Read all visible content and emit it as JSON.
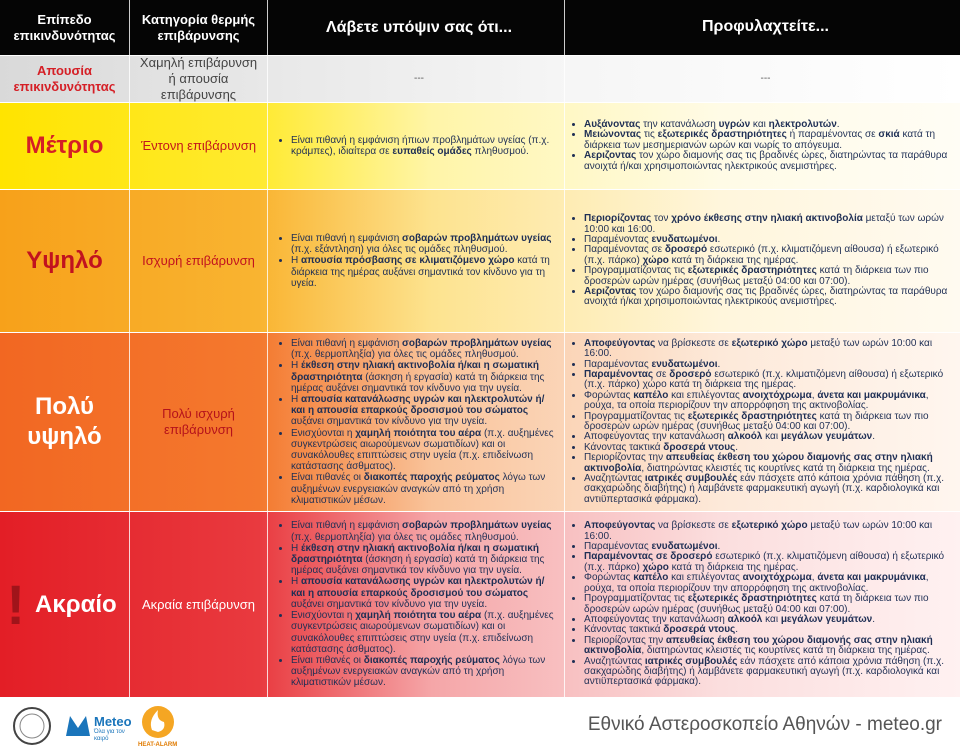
{
  "header": {
    "level": "Επίπεδο επικινδυνότητας",
    "category": "Κατηγορία θερμής επιβάρυνσης",
    "consider": "Λάβετε υπόψιν σας ότι...",
    "protect": "Προφυλαχτείτε..."
  },
  "rows": [
    {
      "level": "Απουσία επικινδυνότητας",
      "category": "Χαμηλή επιβάρυνση ή απουσία επιβάρυνσης",
      "consider": "---",
      "protect": "---"
    },
    {
      "level": "Μέτριο",
      "category": "Έντονη επιβάρυνση",
      "consider": [
        [
          {
            "t": "Είναι πιθανή η εμφάνιση ήπιων προβλημάτων υγείας (π.χ. κράμπες), ιδιαίτερα σε "
          },
          {
            "t": "ευπαθείς ομάδες",
            "b": true
          },
          {
            "t": " πληθυσμού."
          }
        ]
      ],
      "protect": [
        [
          {
            "t": "Αυξάνοντας",
            "b": true
          },
          {
            "t": " την κατανάλωση "
          },
          {
            "t": "υγρών",
            "b": true
          },
          {
            "t": " και "
          },
          {
            "t": "ηλεκτρολυτών",
            "b": true
          },
          {
            "t": "."
          }
        ],
        [
          {
            "t": "Μειώνοντας",
            "b": true
          },
          {
            "t": " τις "
          },
          {
            "t": "εξωτερικές δραστηριότητες",
            "b": true
          },
          {
            "t": " ή παραμένοντας σε "
          },
          {
            "t": "σκιά",
            "b": true
          },
          {
            "t": " κατά τη διάρκεια των μεσημεριανών ωρών και νωρίς το απόγευμα."
          }
        ],
        [
          {
            "t": "Αεριζοντας",
            "b": true
          },
          {
            "t": " τον χώρο διαμονής σας τις βραδινές ώρες, διατηρώντας τα παράθυρα ανοιχτά ή/και χρησιμοποιώντας ηλεκτρικούς ανεμιστήρες."
          }
        ]
      ]
    },
    {
      "level": "Υψηλό",
      "category": "Ισχυρή επιβάρυνση",
      "consider": [
        [
          {
            "t": "Είναι πιθανή η εμφάνιση "
          },
          {
            "t": "σοβαρών προβλημάτων υγείας",
            "b": true
          },
          {
            "t": " (π.χ. εξάντληση) για όλες τις ομάδες πληθυσμού."
          }
        ],
        [
          {
            "t": "Η "
          },
          {
            "t": "απουσία πρόσβασης σε κλιματιζόμενο χώρο",
            "b": true
          },
          {
            "t": " κατά τη διάρκεια της ημέρας αυξάνει σημαντικά τον κίνδυνο για τη υγεία."
          }
        ]
      ],
      "protect": [
        [
          {
            "t": "Περιορίζοντας",
            "b": true
          },
          {
            "t": " τον "
          },
          {
            "t": "χρόνο έκθεσης στην ηλιακή ακτινοβολία",
            "b": true
          },
          {
            "t": " μεταξύ των ωρών 10:00 και 16:00."
          }
        ],
        [
          {
            "t": "Παραμένοντας "
          },
          {
            "t": "ενυδατωμένοι",
            "b": true
          },
          {
            "t": "."
          }
        ],
        [
          {
            "t": "Παραμένοντας σε "
          },
          {
            "t": "δροσερό",
            "b": true
          },
          {
            "t": " εσωτερικό (π.χ. κλιματιζόμενη αίθουσα) ή εξωτερικό (π.χ. πάρκο) "
          },
          {
            "t": "χώρο",
            "b": true
          },
          {
            "t": " κατά τη διάρκεια της ημέρας."
          }
        ],
        [
          {
            "t": "Προγραμματίζοντας τις "
          },
          {
            "t": "εξωτερικές δραστηριότητες",
            "b": true
          },
          {
            "t": " κατά τη διάρκεια των πιο δροσερών ωρών ημέρας (συνήθως μεταξύ 04:00 και 07:00)."
          }
        ],
        [
          {
            "t": "Αεριζοντας",
            "b": true
          },
          {
            "t": " τον χώρο διαμονής σας τις βραδινές ώρες, διατηρώντας τα παράθυρα ανοιχτά ή/και χρησιμοποιώντας ηλεκτρικούς ανεμιστήρες."
          }
        ]
      ]
    },
    {
      "level": "Πολύ υψηλό",
      "category": "Πολύ ισχυρή επιβάρυνση",
      "consider": [
        [
          {
            "t": "Είναι πιθανή η εμφάνιση "
          },
          {
            "t": "σοβαρών προβλημάτων υγείας",
            "b": true
          },
          {
            "t": " (π.χ. θερμοπληξία) για όλες τις ομάδες πληθυσμού."
          }
        ],
        [
          {
            "t": "Η "
          },
          {
            "t": "έκθεση στην ηλιακή ακτινοβολία ή/και η σωματική δραστηριότητα",
            "b": true
          },
          {
            "t": " (άσκηση ή εργασία) κατά τη διάρκεια της ημέρας αυξάνει σημαντικά τον κίνδυνο για την υγεία."
          }
        ],
        [
          {
            "t": "Η "
          },
          {
            "t": "απουσία κατανάλωσης υγρών και ηλεκτρολυτών ή/και η απουσία επαρκούς δροσισμού του σώματος",
            "b": true
          },
          {
            "t": " αυξάνει σημαντικά τον κίνδυνο για την υγεία."
          }
        ],
        [
          {
            "t": "Ενισχύονται η "
          },
          {
            "t": "χαμηλή ποιότητα του αέρα",
            "b": true
          },
          {
            "t": " (π.χ. αυξημένες συγκεντρώσεις αιωρούμενων σωματιδίων) και οι συνακόλουθες επιπτώσεις στην υγεία (π.χ. επιδείνωση κατάστασης άσθματος)."
          }
        ],
        [
          {
            "t": "Είναι πιθανές οι "
          },
          {
            "t": "διακοπές παροχής ρεύματος",
            "b": true
          },
          {
            "t": " λόγω των αυξημένων ενεργειακών αναγκών από τη χρήση κλιματιστικών μέσων."
          }
        ]
      ],
      "protect": [
        [
          {
            "t": "Αποφεύγοντας",
            "b": true
          },
          {
            "t": " να βρίσκεστε σε "
          },
          {
            "t": "εξωτερικό χώρο",
            "b": true
          },
          {
            "t": " μεταξύ των ωρών 10:00 και 16:00."
          }
        ],
        [
          {
            "t": "Παραμένοντας "
          },
          {
            "t": "ενυδατωμένοι",
            "b": true
          },
          {
            "t": "."
          }
        ],
        [
          {
            "t": "Παραμένοντας",
            "b": true
          },
          {
            "t": " σε "
          },
          {
            "t": "δροσερό",
            "b": true
          },
          {
            "t": " εσωτερικό (π.χ. κλιματιζόμενη αίθουσα) ή εξωτερικό (π.χ. πάρκο) χώρο κατά τη διάρκεια της ημέρας."
          }
        ],
        [
          {
            "t": "Φορώντας "
          },
          {
            "t": "καπέλο",
            "b": true
          },
          {
            "t": " και επιλέγοντας "
          },
          {
            "t": "ανοιχτόχρωμα",
            "b": true
          },
          {
            "t": ", "
          },
          {
            "t": "άνετα και μακρυμάνικα",
            "b": true
          },
          {
            "t": ", ρούχα, τα οποία περιορίζουν την απορρόφηση της ακτινοβολίας."
          }
        ],
        [
          {
            "t": "Προγραμματίζοντας τις "
          },
          {
            "t": "εξωτερικές δραστηριότητες",
            "b": true
          },
          {
            "t": " κατά τη διάρκεια των πιο δροσερών ωρών ημέρας (συνήθως μεταξύ 04:00 και 07:00)."
          }
        ],
        [
          {
            "t": "Αποφεύγοντας την κατανάλωση "
          },
          {
            "t": "αλκοόλ",
            "b": true
          },
          {
            "t": " και "
          },
          {
            "t": "μεγάλων γευμάτων",
            "b": true
          },
          {
            "t": "."
          }
        ],
        [
          {
            "t": "Κάνοντας τακτικά "
          },
          {
            "t": "δροσερά ντους",
            "b": true
          },
          {
            "t": "."
          }
        ],
        [
          {
            "t": "Περιορίζοντας την "
          },
          {
            "t": "απευθείας έκθεση του χώρου διαμονής σας στην ηλιακή ακτινοβολία",
            "b": true
          },
          {
            "t": ", διατηρώντας κλειστές τις κουρτίνες κατά τη διάρκεια της ημέρας."
          }
        ],
        [
          {
            "t": "Αναζητώντας "
          },
          {
            "t": "ιατρικές συμβουλές",
            "b": true
          },
          {
            "t": " εάν πάσχετε από κάποια χρόνια πάθηση (π.χ. σακχαρώδης διαβήτης) ή λαμβάνετε φαρμακευτική αγωγή (π.χ. καρδιολογικά και αντιϋπερτασικά φάρμακα)."
          }
        ]
      ]
    },
    {
      "level": "Ακραίο",
      "marker": "!",
      "category": "Ακραία επιβάρυνση",
      "consider": [
        [
          {
            "t": "Είναι πιθανή η εμφάνιση "
          },
          {
            "t": "σοβαρών προβλημάτων υγείας",
            "b": true
          },
          {
            "t": " (π.χ. θερμοπληξία) για όλες τις ομάδες πληθυσμού."
          }
        ],
        [
          {
            "t": "Η "
          },
          {
            "t": "έκθεση στην ηλιακή ακτινοβολία ή/και η σωματική δραστηριότητα",
            "b": true
          },
          {
            "t": " (άσκηση ή εργασία) κατά τη διάρκεια της ημέρας αυξάνει σημαντικά τον κίνδυνο για την υγεία."
          }
        ],
        [
          {
            "t": "Η "
          },
          {
            "t": "απουσία κατανάλωσης υγρών και ηλεκτρολυτών ή/και η απουσία επαρκούς δροσισμού του σώματος",
            "b": true
          },
          {
            "t": " αυξάνει σημαντικά τον κίνδυνο για την υγεία."
          }
        ],
        [
          {
            "t": "Ενισχύονται η "
          },
          {
            "t": "χαμηλή ποιότητα του αέρα",
            "b": true
          },
          {
            "t": " (π.χ. αυξημένες συγκεντρώσεις αιωρούμενων σωματιδίων) και οι συνακόλουθες επιπτώσεις στην υγεία (π.χ. επιδείνωση κατάστασης άσθματος)."
          }
        ],
        [
          {
            "t": "Είναι πιθανές οι "
          },
          {
            "t": "διακοπές παροχής ρεύματος",
            "b": true
          },
          {
            "t": " λόγω των αυξημένων ενεργειακών αναγκών από τη χρήση κλιματιστικών μέσων."
          }
        ]
      ],
      "protect": [
        [
          {
            "t": "Αποφεύγοντας",
            "b": true
          },
          {
            "t": " να βρίσκεστε σε "
          },
          {
            "t": "εξωτερικό χώρο",
            "b": true
          },
          {
            "t": " μεταξύ των ωρών 10:00 και 16:00."
          }
        ],
        [
          {
            "t": "Παραμένοντας "
          },
          {
            "t": "ενυδατωμένοι",
            "b": true
          },
          {
            "t": "."
          }
        ],
        [
          {
            "t": "Παραμένοντας σε δροσερό",
            "b": true
          },
          {
            "t": " εσωτερικό (π.χ. κλιματιζόμενη αίθουσα) ή εξωτερικό (π.χ. πάρκο) "
          },
          {
            "t": "χώρο",
            "b": true
          },
          {
            "t": " κατά τη διάρκεια της ημέρας."
          }
        ],
        [
          {
            "t": "Φορώντας "
          },
          {
            "t": "καπέλο",
            "b": true
          },
          {
            "t": " και επιλέγοντας "
          },
          {
            "t": "ανοιχτόχρωμα",
            "b": true
          },
          {
            "t": ", "
          },
          {
            "t": "άνετα και μακρυμάνικα",
            "b": true
          },
          {
            "t": ", ρούχα, τα οποία περιορίζουν την απορρόφηση της ακτινοβολίας."
          }
        ],
        [
          {
            "t": "Προγραμματίζοντας τις "
          },
          {
            "t": "εξωτερικές δραστηριότητες",
            "b": true
          },
          {
            "t": " κατά τη διάρκεια των πιο δροσερών ωρών ημέρας (συνήθως μεταξύ 04:00 και 07:00)."
          }
        ],
        [
          {
            "t": "Αποφεύγοντας την κατανάλωση "
          },
          {
            "t": "αλκοόλ",
            "b": true
          },
          {
            "t": " και "
          },
          {
            "t": "μεγάλων γευμάτων",
            "b": true
          },
          {
            "t": "."
          }
        ],
        [
          {
            "t": "Κάνοντας τακτικά "
          },
          {
            "t": "δροσερά ντους",
            "b": true
          },
          {
            "t": "."
          }
        ],
        [
          {
            "t": "Περιορίζοντας την "
          },
          {
            "t": "απευθείας έκθεση του χώρου διαμονής σας στην ηλιακή ακτινοβολία",
            "b": true
          },
          {
            "t": ", διατηρώντας κλειστές τις κουρτίνες κατά τη διάρκεια της ημέρας."
          }
        ],
        [
          {
            "t": "Αναζητώντας "
          },
          {
            "t": "ιατρικές συμβουλές",
            "b": true
          },
          {
            "t": " εάν πάσχετε από κάποια χρόνια πάθηση (π.χ. σακχαρώδης διαβήτης) ή λαμβάνετε φαρμακευτική αγωγή (π.χ. καρδιολογικά και αντιϋπερτασικά φάρμακα)."
          }
        ]
      ]
    }
  ],
  "footer": {
    "meteo": "Meteo",
    "meteo_tagline": "Όλα για τον καιρό",
    "heat_alarm": "HEAT-ALARM",
    "observatory": "Εθνικό Αστεροσκοπείο Αθηνών - meteo.gr"
  }
}
